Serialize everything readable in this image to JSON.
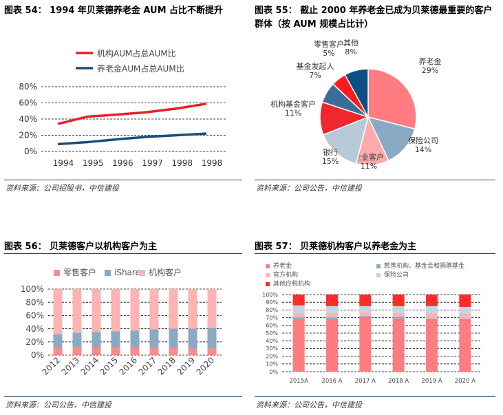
{
  "charts": [
    {
      "figure_title": "图表 54：  1994 年贝莱德养老金 AUM 占比不断提升",
      "source": "资料来源：公司招股书，中信建投",
      "chart_data": {
        "type": "line",
        "title": "1994 年贝莱德养老金 AUM 占比不断提升",
        "x": [
          "1994",
          "1995",
          "1996",
          "1997",
          "1998",
          "1998"
        ],
        "series": [
          {
            "name": "机构AUM占总AUM比",
            "color": "#e8202a",
            "values": [
              0.34,
              0.43,
              0.455,
              0.485,
              0.53,
              0.59
            ]
          },
          {
            "name": "养老金AUM占总AUM比",
            "color": "#1a4e79",
            "values": [
              0.09,
              0.115,
              0.15,
              0.18,
              0.2,
              0.22
            ]
          }
        ],
        "ylim": [
          0,
          0.8
        ],
        "yticks": [
          "0%",
          "20%",
          "40%",
          "60%",
          "80%"
        ]
      }
    },
    {
      "figure_title": "图表 55：  截止 2000 年养老金已成为贝莱德最重要的客户",
      "figure_title_line2": "群体（按 AUM 规模占比计）",
      "source": "资料来源：公司公告，中信建投",
      "chart_data": {
        "type": "pie",
        "slices": [
          {
            "label": "养老金",
            "value": 29,
            "pct": "29%",
            "color": "#ff7c80"
          },
          {
            "label": "保险公司",
            "value": 14,
            "pct": "14%",
            "color": "#8aa9c3"
          },
          {
            "label": "企业客户",
            "value": 11,
            "pct": "11%",
            "color": "#ffaaaa"
          },
          {
            "label": "银行",
            "value": 15,
            "pct": "15%",
            "color": "#b8cad9"
          },
          {
            "label": "机构基金客户",
            "value": 11,
            "pct": "11%",
            "color": "#f0282e"
          },
          {
            "label": "基金发起人",
            "value": 7,
            "pct": "7%",
            "color": "#3a6e99"
          },
          {
            "label": "零售客户",
            "value": 5,
            "pct": "5%",
            "color": "#ff1a1a"
          },
          {
            "label": "其他",
            "value": 8,
            "pct": "8%",
            "color": "#0b4f85"
          }
        ]
      }
    },
    {
      "figure_title": "图表 56：  贝莱德客户以机构客户为主",
      "source": "资料来源：公司公告，中信建投",
      "chart_data": {
        "type": "bar",
        "stacked": true,
        "categories": [
          "2012",
          "2013",
          "2014",
          "2015",
          "2016",
          "2017",
          "2018",
          "2019",
          "2020"
        ],
        "series": [
          {
            "name": "零售客户",
            "color": "#ff8a8d",
            "values": [
              0.12,
              0.12,
              0.12,
              0.12,
              0.12,
              0.11,
              0.11,
              0.1,
              0.1
            ]
          },
          {
            "name": "iShares",
            "color": "#8aa9c3",
            "values": [
              0.2,
              0.22,
              0.23,
              0.24,
              0.25,
              0.28,
              0.29,
              0.3,
              0.31
            ]
          },
          {
            "name": "机构客户",
            "color": "#ffb3b3",
            "values": [
              0.68,
              0.66,
              0.65,
              0.64,
              0.63,
              0.61,
              0.6,
              0.6,
              0.59
            ]
          }
        ],
        "ylim": [
          0,
          1
        ],
        "yticks": [
          "0%",
          "20%",
          "40%",
          "60%",
          "80%",
          "100%"
        ]
      }
    },
    {
      "figure_title": "图表 57：  贝莱德机构客户以养老金为主",
      "source": "资料来源：公司公告，中信建投",
      "chart_data": {
        "type": "bar",
        "stacked": true,
        "categories": [
          "2015A",
          "2016 A",
          "2017 A",
          "2018 A",
          "2019 A",
          "2020 A"
        ],
        "series": [
          {
            "name": "养老金",
            "color": "#ff7c80",
            "values": [
              0.68,
              0.68,
              0.7,
              0.69,
              0.67,
              0.67
            ]
          },
          {
            "name": "慈善机构、基金会和捐赠基金",
            "color": "#8aa9c3",
            "values": [
              0.02,
              0.02,
              0.02,
              0.02,
              0.02,
              0.02
            ]
          },
          {
            "name": "官方机构",
            "color": "#ffb3b3",
            "values": [
              0.06,
              0.06,
              0.05,
              0.05,
              0.06,
              0.06
            ]
          },
          {
            "name": "保险公司",
            "color": "#c5d4e2",
            "values": [
              0.1,
              0.09,
              0.08,
              0.09,
              0.1,
              0.09
            ]
          },
          {
            "name": "其他应税机构",
            "color": "#ff2a2a",
            "values": [
              0.14,
              0.15,
              0.15,
              0.15,
              0.15,
              0.16
            ]
          }
        ],
        "ylim": [
          0,
          1
        ],
        "yticks": [
          "0%",
          "10%",
          "20%",
          "30%",
          "40%",
          "50%",
          "60%",
          "70%",
          "80%",
          "90%",
          "100%"
        ]
      }
    }
  ]
}
